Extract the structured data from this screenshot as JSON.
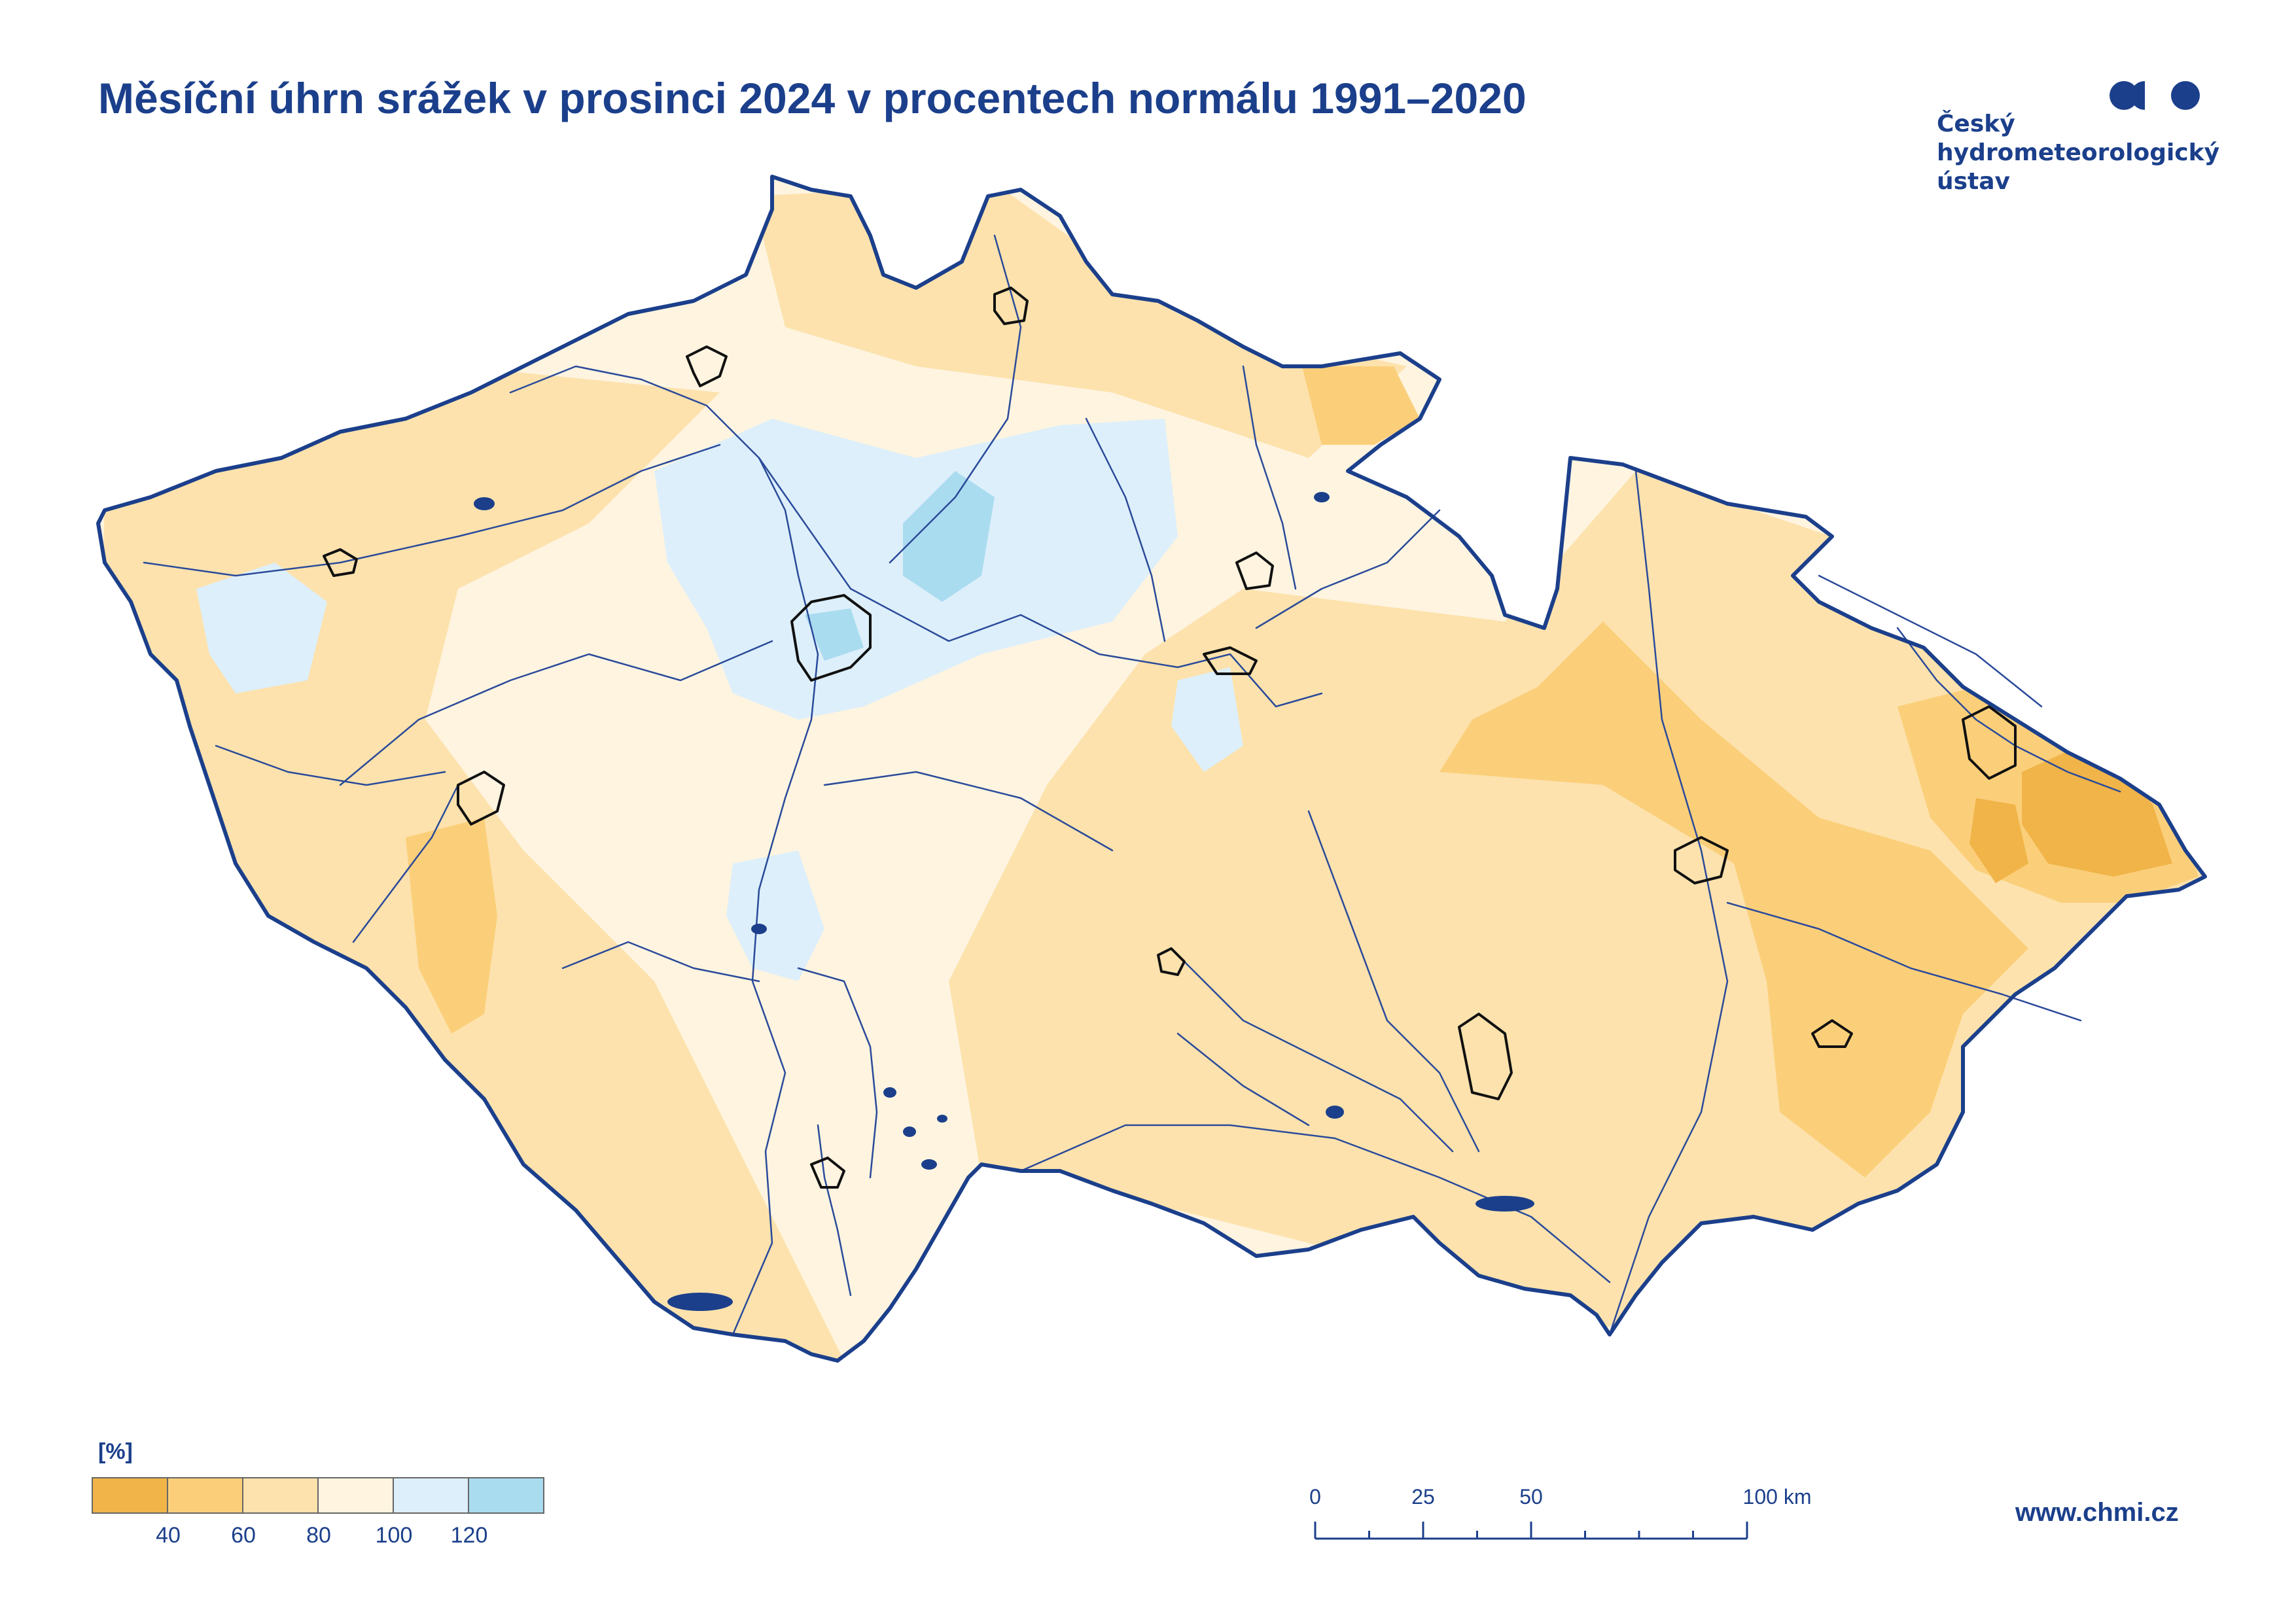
{
  "title": "Měsíční úhrn srážek v prosinci 2024 v procentech normálu 1991–2020",
  "logo": {
    "lines": [
      "Český",
      "hydrometeorologický",
      "ústav"
    ],
    "mark_icon": "chmi-logo-mark",
    "color": "#1b3f8b"
  },
  "legend": {
    "unit": "[%]",
    "classes": [
      {
        "range": "<40",
        "color": "#f0b449"
      },
      {
        "range": "40–60",
        "color": "#fbcf7a"
      },
      {
        "range": "60–80",
        "color": "#fde2ad"
      },
      {
        "range": "80–100",
        "color": "#fef4e0"
      },
      {
        "range": "100–120",
        "color": "#ddeffa"
      },
      {
        "range": ">120",
        "color": "#aadcf0"
      }
    ],
    "ticks": [
      "40",
      "60",
      "80",
      "100",
      "120"
    ]
  },
  "scale_bar": {
    "labels": [
      "0",
      "25",
      "50",
      "100 km"
    ],
    "values_km": [
      0,
      25,
      50,
      100
    ]
  },
  "website": "www.chmi.cz",
  "map": {
    "region": "Czech Republic",
    "border_color": "#1b3f8b",
    "river_color": "#2a4a9a",
    "city_outline_color": "#111111",
    "wettest_area": "central Bohemia (Prague and surroundings)",
    "driest_area": "eastern Moravia and Silesia"
  }
}
